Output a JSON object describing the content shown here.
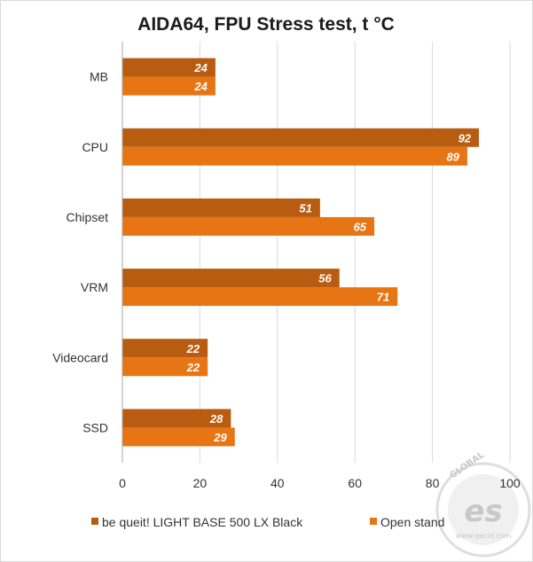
{
  "chart_data": {
    "type": "bar",
    "orientation": "horizontal",
    "title": "AIDA64, FPU Stress test, t °C",
    "categories": [
      "MB",
      "CPU",
      "Chipset",
      "VRM",
      "Videocard",
      "SSD"
    ],
    "series": [
      {
        "name": "be queit! LIGHT BASE 500 LX Black",
        "values": [
          24,
          92,
          51,
          56,
          22,
          28
        ],
        "color": "#b85c11"
      },
      {
        "name": "Open stand",
        "values": [
          24,
          89,
          65,
          71,
          22,
          29
        ],
        "color": "#e87513"
      }
    ],
    "xlim": [
      0,
      100
    ],
    "xticks": [
      0,
      20,
      40,
      60,
      80,
      100
    ],
    "grid": true,
    "legend_position": "bottom"
  },
  "watermark": {
    "brand": "GLOBAL",
    "logo_letters": "es",
    "domain": "www.gecid.com"
  }
}
